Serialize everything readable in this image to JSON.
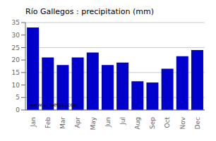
{
  "chart_data": {
    "type": "bar",
    "title": "Río Gallegos : precipitation (mm)",
    "categories": [
      "Jan",
      "Feb",
      "Mar",
      "Apr",
      "May",
      "Jun",
      "Jul",
      "Aug",
      "Sep",
      "Oct",
      "Nov",
      "Dec"
    ],
    "values": [
      33,
      21,
      18,
      21,
      23,
      18,
      19,
      11.5,
      11,
      16.5,
      21.5,
      24
    ],
    "color": "#0000cc",
    "ylim": [
      0,
      35
    ],
    "yticks": [
      0,
      5,
      10,
      15,
      20,
      25,
      30,
      35
    ],
    "grid": true,
    "annotations": [
      "www.allmetsat.com"
    ]
  }
}
